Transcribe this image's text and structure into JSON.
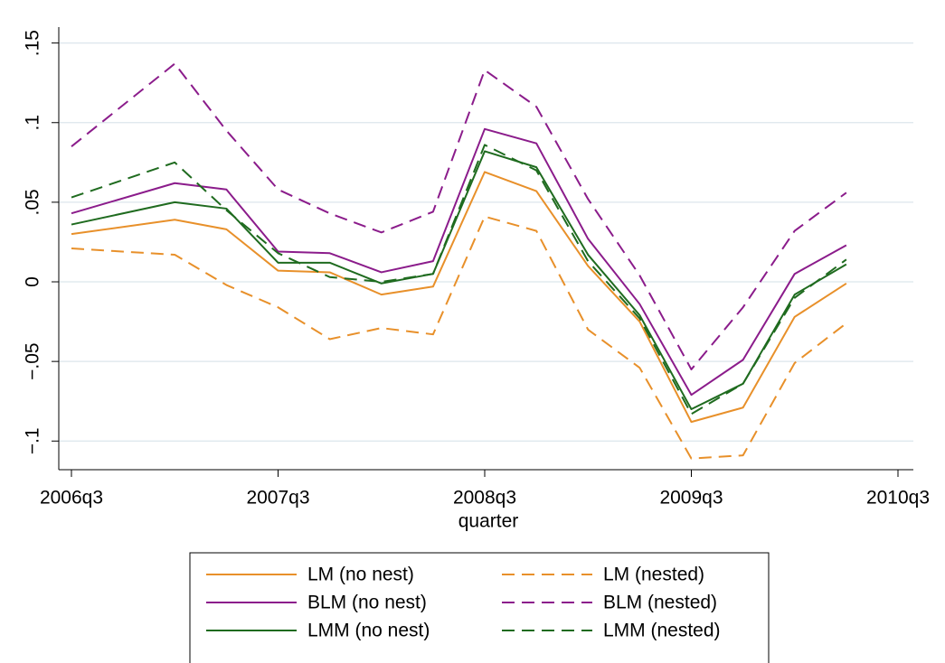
{
  "chart_data": {
    "type": "line",
    "x_label": "quarter",
    "x": [
      "2006q3",
      "2007q1",
      "2007q2",
      "2007q3",
      "2007q4",
      "2008q1",
      "2008q2",
      "2008q3",
      "2008q4",
      "2009q1",
      "2009q2",
      "2009q3",
      "2009q4",
      "2010q1",
      "2010q2"
    ],
    "xticks": [
      "2006q3",
      "2007q3",
      "2008q3",
      "2009q3",
      "2010q3"
    ],
    "ylim": [
      -0.118,
      0.16
    ],
    "yticks": [
      {
        "value": -0.1,
        "label": "−.1"
      },
      {
        "value": -0.05,
        "label": "−.05"
      },
      0,
      {
        "value": 0.05,
        "label": ".05"
      },
      {
        "value": 0.1,
        "label": ".1"
      },
      {
        "value": 0.15,
        "label": ".15"
      }
    ],
    "grid": true,
    "series": [
      {
        "name": "LM (no nest)",
        "color": "#e8902a",
        "style": "solid",
        "values": [
          0.03,
          0.039,
          0.033,
          0.007,
          0.006,
          -0.008,
          -0.003,
          0.069,
          0.057,
          0.01,
          -0.025,
          -0.088,
          -0.079,
          -0.022,
          -0.001
        ]
      },
      {
        "name": "LM (nested)",
        "color": "#e8902a",
        "style": "dashed",
        "values": [
          0.021,
          0.017,
          -0.002,
          -0.016,
          -0.036,
          -0.029,
          -0.033,
          0.041,
          0.032,
          -0.03,
          -0.054,
          -0.111,
          -0.109,
          -0.051,
          -0.026
        ]
      },
      {
        "name": "BLM (no nest)",
        "color": "#8b1c8b",
        "style": "solid",
        "values": [
          0.043,
          0.062,
          0.058,
          0.019,
          0.018,
          0.006,
          0.013,
          0.096,
          0.087,
          0.027,
          -0.014,
          -0.071,
          -0.049,
          0.005,
          0.023
        ]
      },
      {
        "name": "BLM (nested)",
        "color": "#8b1c8b",
        "style": "dashed",
        "values": [
          0.085,
          0.137,
          0.095,
          0.058,
          0.043,
          0.031,
          0.044,
          0.133,
          0.11,
          0.052,
          0.004,
          -0.055,
          -0.016,
          0.032,
          0.056
        ]
      },
      {
        "name": "LMM (no nest)",
        "color": "#1f6b1f",
        "style": "solid",
        "values": [
          0.036,
          0.05,
          0.046,
          0.012,
          0.012,
          -0.001,
          0.005,
          0.082,
          0.072,
          0.017,
          -0.021,
          -0.08,
          -0.064,
          -0.008,
          0.011
        ]
      },
      {
        "name": "LMM (nested)",
        "color": "#1f6b1f",
        "style": "dashed",
        "values": [
          0.053,
          0.075,
          0.045,
          0.018,
          0.003,
          0.0,
          0.005,
          0.086,
          0.07,
          0.013,
          -0.023,
          -0.083,
          -0.064,
          -0.01,
          0.014
        ]
      }
    ]
  }
}
